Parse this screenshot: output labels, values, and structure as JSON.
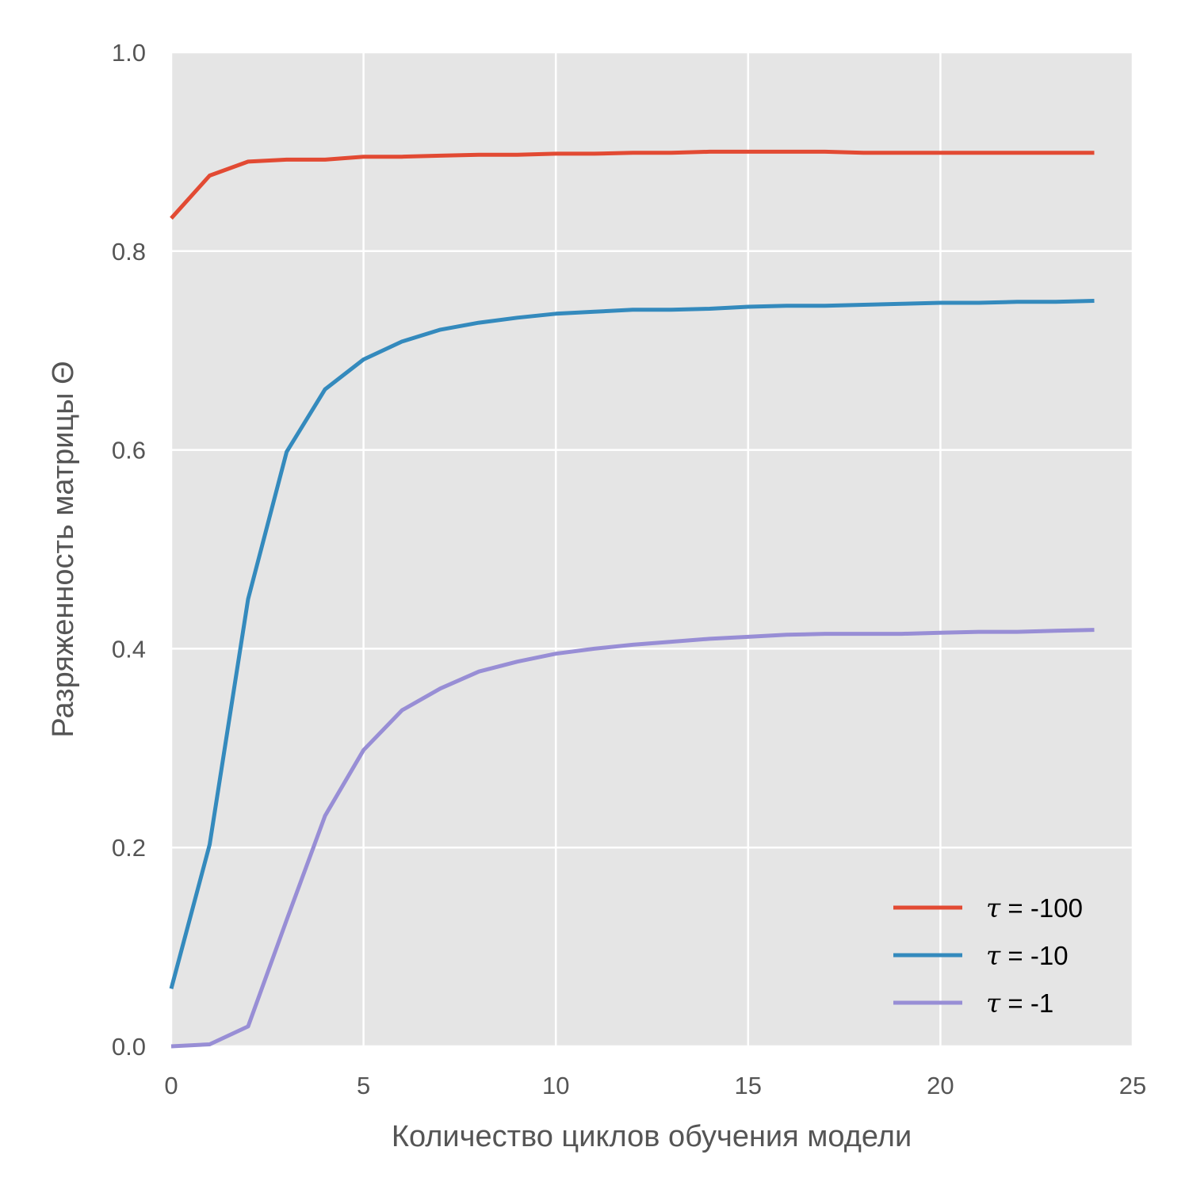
{
  "chart_data": {
    "type": "line",
    "xlabel": "Количество циклов обучения модели",
    "ylabel": "Разряженность матрицы Θ",
    "xlim": [
      0,
      25
    ],
    "ylim": [
      0,
      1.0
    ],
    "xticks": [
      0,
      5,
      10,
      15,
      20,
      25
    ],
    "yticks": [
      0.0,
      0.2,
      0.4,
      0.6,
      0.8,
      1.0
    ],
    "xtick_labels": [
      "0",
      "5",
      "10",
      "15",
      "20",
      "25"
    ],
    "ytick_labels": [
      "0.0",
      "0.2",
      "0.4",
      "0.6",
      "0.8",
      "1.0"
    ],
    "grid": true,
    "legend_position": "bottom-right",
    "x": [
      0,
      1,
      2,
      3,
      4,
      5,
      6,
      7,
      8,
      9,
      10,
      11,
      12,
      13,
      14,
      15,
      16,
      17,
      18,
      19,
      20,
      21,
      22,
      23,
      24
    ],
    "series": [
      {
        "name": "τ = -100",
        "legend_symbol": "τ",
        "legend_value": " = -100",
        "color": "#E24A33",
        "values": [
          0.833,
          0.876,
          0.89,
          0.892,
          0.892,
          0.895,
          0.895,
          0.896,
          0.897,
          0.897,
          0.898,
          0.898,
          0.899,
          0.899,
          0.9,
          0.9,
          0.9,
          0.9,
          0.899,
          0.899,
          0.899,
          0.899,
          0.899,
          0.899,
          0.899
        ]
      },
      {
        "name": "τ = -10",
        "legend_symbol": "τ",
        "legend_value": " = -10",
        "color": "#348ABD",
        "values": [
          0.058,
          0.203,
          0.45,
          0.598,
          0.661,
          0.691,
          0.709,
          0.721,
          0.728,
          0.733,
          0.737,
          0.739,
          0.741,
          0.741,
          0.742,
          0.744,
          0.745,
          0.745,
          0.746,
          0.747,
          0.748,
          0.748,
          0.749,
          0.749,
          0.75
        ]
      },
      {
        "name": "τ = -1",
        "legend_symbol": "τ",
        "legend_value": " = -1",
        "color": "#988ED5",
        "values": [
          0.0,
          0.002,
          0.02,
          0.127,
          0.232,
          0.298,
          0.338,
          0.36,
          0.377,
          0.387,
          0.395,
          0.4,
          0.404,
          0.407,
          0.41,
          0.412,
          0.414,
          0.415,
          0.415,
          0.415,
          0.416,
          0.417,
          0.417,
          0.418,
          0.419
        ]
      }
    ]
  }
}
